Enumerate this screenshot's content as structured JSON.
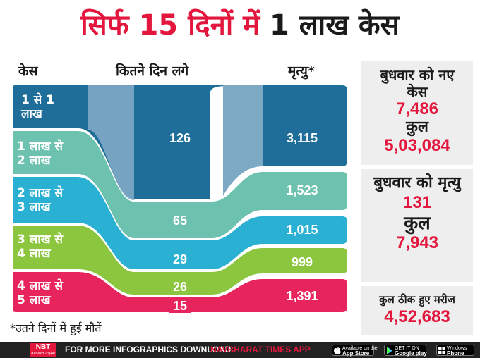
{
  "title": {
    "red": "सिर्फ 15 दिनों में",
    "black": "1 लाख केस"
  },
  "headers": {
    "cases": "केस",
    "days": "कितने दिन लगे",
    "deaths": "मृत्यु*"
  },
  "bands": [
    {
      "label": "1 से 1\nलाख",
      "days": "126",
      "deaths": "3,115",
      "color": "#1f6e99",
      "light": "#7ea9c5"
    },
    {
      "label": "1 लाख से\n2 लाख",
      "days": "65",
      "deaths": "1,523",
      "color": "#6cc2ae",
      "light": "#b5e0d6"
    },
    {
      "label": "2 लाख से\n3 लाख",
      "days": "29",
      "deaths": "1,015",
      "color": "#29b0d2",
      "light": "#8dd5e8"
    },
    {
      "label": "3 लाख से\n4 लाख",
      "days": "26",
      "deaths": "999",
      "color": "#8cc63f",
      "light": "#c6e29f"
    },
    {
      "label": "4 लाख से\n5 लाख",
      "days": "15",
      "deaths": "1,391",
      "color": "#e8245c",
      "light": "#f39aae"
    }
  ],
  "footnote": "*उतने दिनों में हुईं मौतें",
  "panel": {
    "new_cases_label": "बुधवार को नए केस",
    "new_cases": "7,486",
    "total_cases_label": "कुल",
    "total_cases": "5,03,084",
    "deaths_label": "बुधवार को मृत्यु",
    "deaths": "131",
    "total_deaths_label": "कुल",
    "total_deaths": "7,943",
    "recovered_label": "कुल ठीक हुए मरीज",
    "recovered": "4,52,683"
  },
  "footer": {
    "logo": "NBT",
    "logo_sub": "नवभारत टाइम्स",
    "text": "FOR MORE INFOGRAPHICS DOWNLOAD",
    "app": "NAVBHARAT TIMES APP",
    "badges": [
      {
        "small": "Available on the",
        "big": "App Store"
      },
      {
        "small": "GET IT ON",
        "big": "Google play"
      },
      {
        "small": "Windows",
        "big": "Phone"
      }
    ]
  }
}
